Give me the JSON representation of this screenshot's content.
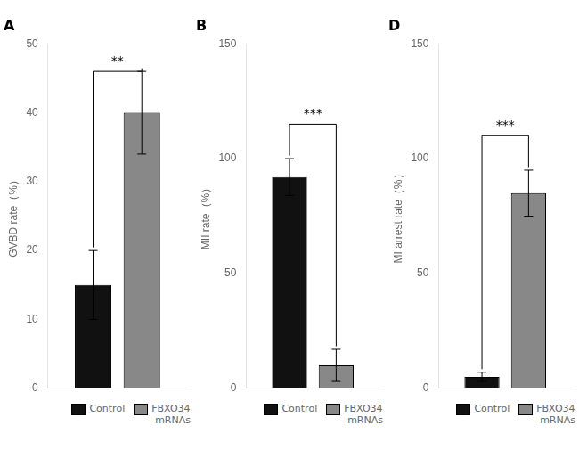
{
  "chart_data": [
    {
      "type": "bar",
      "title": "A",
      "ylabel": "GVBD rate（%）",
      "categories": [
        null
      ],
      "series": [
        {
          "name": "Control",
          "color": "#111111",
          "values": [
            15
          ],
          "errors": [
            5
          ]
        },
        {
          "name": "FBXO34\n-mRNAs",
          "color": "#888888",
          "values": [
            40
          ],
          "errors": [
            6
          ]
        }
      ],
      "ylim": [
        0,
        50
      ],
      "yticks": [
        0,
        10,
        20,
        30,
        40,
        50
      ],
      "annotation": "**",
      "grid": false,
      "legend": "upper right",
      "tick_labels": "y"
    },
    {
      "type": "bar",
      "title": "B",
      "ylabel": "MII rate（%）",
      "categories": [
        null
      ],
      "series": [
        {
          "name": "Control",
          "color": "#111111",
          "values": [
            92
          ],
          "errors": [
            8
          ]
        },
        {
          "name": "FBXO34\n-mRNAs",
          "color": "#888888",
          "values": [
            10
          ],
          "errors": [
            7
          ]
        }
      ],
      "ylim": [
        0,
        150
      ],
      "yticks": [
        0,
        50,
        100,
        150
      ],
      "annotation": "***",
      "grid": false,
      "legend": "upper right",
      "tick_labels": "y"
    },
    {
      "type": "bar",
      "title": "D",
      "ylabel": "MI arrest rate（%）",
      "categories": [
        null
      ],
      "series": [
        {
          "name": "Control",
          "color": "#111111",
          "values": [
            5
          ],
          "errors": [
            2
          ]
        },
        {
          "name": "FBXO34\n-mRNAs",
          "color": "#888888",
          "values": [
            85
          ],
          "errors": [
            10
          ]
        }
      ],
      "ylim": [
        0,
        150
      ],
      "yticks": [
        0,
        50,
        100,
        150
      ],
      "annotation": "***",
      "grid": false,
      "legend": "upper right",
      "tick_labels": "y"
    }
  ]
}
